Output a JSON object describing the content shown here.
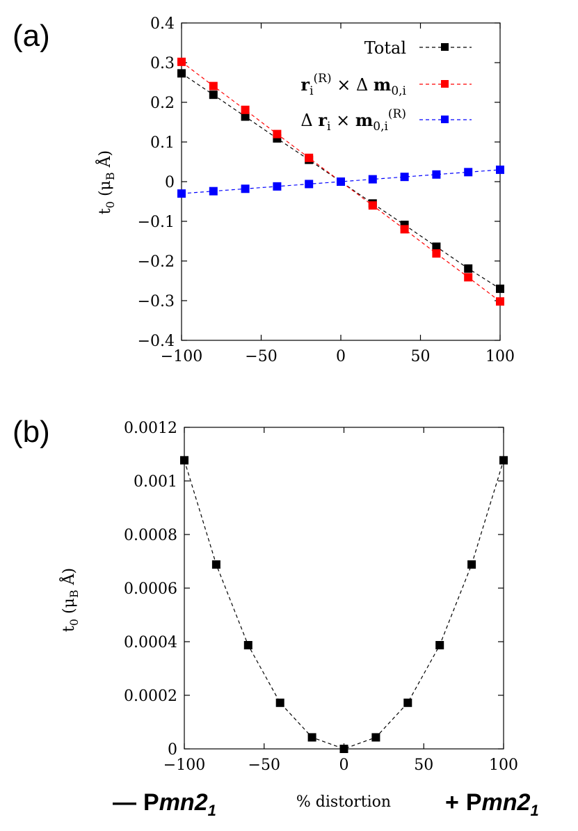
{
  "chart_data": [
    {
      "type": "line",
      "panel_label": "(a)",
      "title": "",
      "xlabel": "",
      "ylabel_main": "t",
      "ylabel_sub": "0",
      "ylabel_rest": " (μ",
      "ylabel_unit_sub": "B",
      "ylabel_end": " Å)",
      "xlim": [
        -100,
        100
      ],
      "ylim": [
        -0.4,
        0.4
      ],
      "x": [
        -100,
        -80,
        -60,
        -40,
        -20,
        0,
        20,
        40,
        60,
        80,
        100
      ],
      "xticks": [
        "−100",
        "−50",
        "0",
        "50",
        "100"
      ],
      "yticks": [
        "0.4",
        "0.3",
        "0.2",
        "0.1",
        "0",
        "−0.1",
        "−0.2",
        "−0.3",
        "−0.4"
      ],
      "legend_position": "top-right",
      "series": [
        {
          "name": "Total",
          "color": "#000000",
          "values": [
            0.273,
            0.219,
            0.164,
            0.109,
            0.055,
            0.0,
            -0.055,
            -0.109,
            -0.164,
            -0.219,
            -0.27
          ]
        },
        {
          "name": "r_i^(R) × Δ m_0,i",
          "color": "#ff0000",
          "values": [
            0.302,
            0.241,
            0.181,
            0.12,
            0.06,
            0.0,
            -0.06,
            -0.12,
            -0.181,
            -0.241,
            -0.302
          ]
        },
        {
          "name": "Δ r_i × m_0,i^(R)",
          "color": "#0000ff",
          "values": [
            -0.03,
            -0.024,
            -0.018,
            -0.012,
            -0.006,
            0.0,
            0.006,
            0.012,
            0.018,
            0.024,
            0.03
          ]
        }
      ],
      "legend": {
        "total": "Total",
        "red_r": "r",
        "red_i": "i",
        "red_sup": "(R)",
        "red_times": " × Δ ",
        "red_m": "m",
        "red_sub": "0,i",
        "blue_delta": "Δ ",
        "blue_r": "r",
        "blue_i": "i",
        "blue_times": " × ",
        "blue_m": "m",
        "blue_sub": "0,i",
        "blue_sup": "(R)"
      }
    },
    {
      "type": "line",
      "panel_label": "(b)",
      "title": "",
      "xlabel": "% distortion",
      "ylabel_main": "t",
      "ylabel_sub": "0",
      "ylabel_rest": " (μ",
      "ylabel_unit_sub": "B",
      "ylabel_end": " Å)",
      "xlim": [
        -100,
        100
      ],
      "ylim": [
        0,
        0.0012
      ],
      "x": [
        -100,
        -80,
        -60,
        -40,
        -20,
        0,
        20,
        40,
        60,
        80,
        100
      ],
      "xticks": [
        "−100",
        "−50",
        "0",
        "50",
        "100"
      ],
      "yticks": [
        "0.0012",
        "0.001",
        "0.0008",
        "0.0006",
        "0.0004",
        "0.0002",
        "0"
      ],
      "series": [
        {
          "name": "t0",
          "color": "#000000",
          "values": [
            0.001077,
            0.000688,
            0.000387,
            0.000172,
            4.3e-05,
            0.0,
            4.3e-05,
            0.000172,
            0.000387,
            0.000688,
            0.001077
          ]
        }
      ],
      "annotations": {
        "left_dash": "—",
        "left_p": "P",
        "left_mn": "mn2",
        "left_sub": "1",
        "right_plus": "+",
        "right_p": "P",
        "right_mn": "mn2",
        "right_sub": "1"
      }
    }
  ]
}
